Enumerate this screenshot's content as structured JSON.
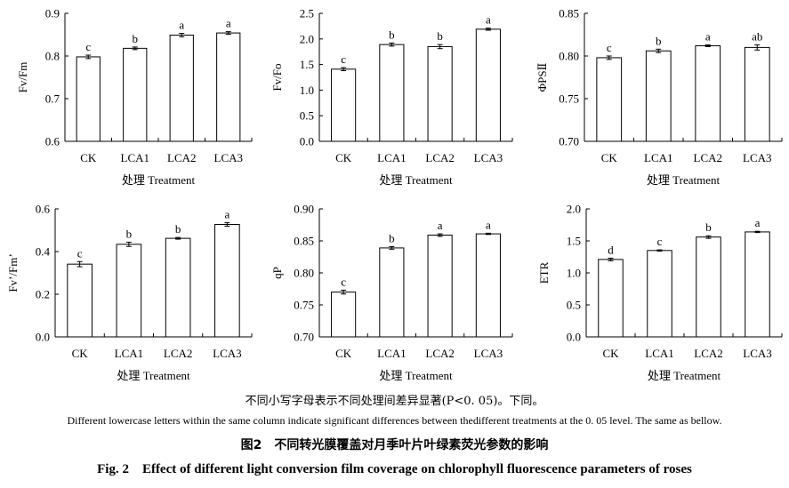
{
  "chart_data": [
    {
      "type": "bar",
      "categories": [
        "CK",
        "LCA1",
        "LCA2",
        "LCA3"
      ],
      "values": [
        0.798,
        0.818,
        0.849,
        0.854
      ],
      "errors": [
        0.004,
        0.003,
        0.004,
        0.003
      ],
      "letters": [
        "c",
        "b",
        "a",
        "a"
      ],
      "ylabel": "Fv/Fm",
      "xlabel": "处理 Treatment",
      "ylim": [
        0.6,
        0.9
      ],
      "yticks": [
        "0.6",
        "0.7",
        "0.8",
        "0.9"
      ]
    },
    {
      "type": "bar",
      "categories": [
        "CK",
        "LCA1",
        "LCA2",
        "LCA3"
      ],
      "values": [
        1.41,
        1.89,
        1.85,
        2.19
      ],
      "errors": [
        0.03,
        0.03,
        0.04,
        0.02
      ],
      "letters": [
        "c",
        "b",
        "b",
        "a"
      ],
      "ylabel": "Fv/Fo",
      "xlabel": "处理 Treatment",
      "ylim": [
        0.0,
        2.5
      ],
      "yticks": [
        "0.0",
        "0.5",
        "1.0",
        "1.5",
        "2.0",
        "2.5"
      ]
    },
    {
      "type": "bar",
      "categories": [
        "CK",
        "LCA1",
        "LCA2",
        "LCA3"
      ],
      "values": [
        0.798,
        0.806,
        0.812,
        0.81
      ],
      "errors": [
        0.002,
        0.002,
        0.001,
        0.003
      ],
      "letters": [
        "c",
        "b",
        "a",
        "ab"
      ],
      "ylabel": "ΦPSⅡ",
      "xlabel": "处理 Treatment",
      "ylim": [
        0.7,
        0.85
      ],
      "yticks": [
        "0.70",
        "0.75",
        "0.80",
        "0.85"
      ]
    },
    {
      "type": "bar",
      "categories": [
        "CK",
        "LCA1",
        "LCA2",
        "LCA3"
      ],
      "values": [
        0.341,
        0.434,
        0.462,
        0.527
      ],
      "errors": [
        0.012,
        0.01,
        0.004,
        0.008
      ],
      "letters": [
        "c",
        "b",
        "b",
        "a"
      ],
      "ylabel": "Fv’/Fm’",
      "xlabel": "处理 Treatment",
      "ylim": [
        0.0,
        0.6
      ],
      "yticks": [
        "0.0",
        "0.2",
        "0.4",
        "0.6"
      ]
    },
    {
      "type": "bar",
      "categories": [
        "CK",
        "LCA1",
        "LCA2",
        "LCA3"
      ],
      "values": [
        0.77,
        0.839,
        0.859,
        0.861
      ],
      "errors": [
        0.003,
        0.002,
        0.002,
        0.001
      ],
      "letters": [
        "c",
        "b",
        "a",
        "a"
      ],
      "ylabel": "qP",
      "xlabel": "处理 Treatment",
      "ylim": [
        0.7,
        0.9
      ],
      "yticks": [
        "0.70",
        "0.75",
        "0.80",
        "0.85",
        "0.90"
      ]
    },
    {
      "type": "bar",
      "categories": [
        "CK",
        "LCA1",
        "LCA2",
        "LCA3"
      ],
      "values": [
        1.21,
        1.35,
        1.56,
        1.64
      ],
      "errors": [
        0.02,
        0.01,
        0.02,
        0.01
      ],
      "letters": [
        "d",
        "c",
        "b",
        "a"
      ],
      "ylabel": "ETR",
      "xlabel": "处理 Treatment",
      "ylim": [
        0.0,
        2.0
      ],
      "yticks": [
        "0.0",
        "0.5",
        "1.0",
        "1.5",
        "2.0"
      ]
    }
  ],
  "caption": {
    "note_cn": "不同小写字母表示不同处理间差异显著(P<0. 05)。下同。",
    "note_en": "Different lowercase letters within the same column indicate significant differences between thedifferent treatments at the 0. 05 level. The same as bellow.",
    "title_cn": "图2　不同转光膜覆盖对月季叶片叶绿素荧光参数的影响",
    "title_en": "Fig. 2　Effect of different light conversion film coverage on chlorophyll fluorescence parameters of roses"
  }
}
